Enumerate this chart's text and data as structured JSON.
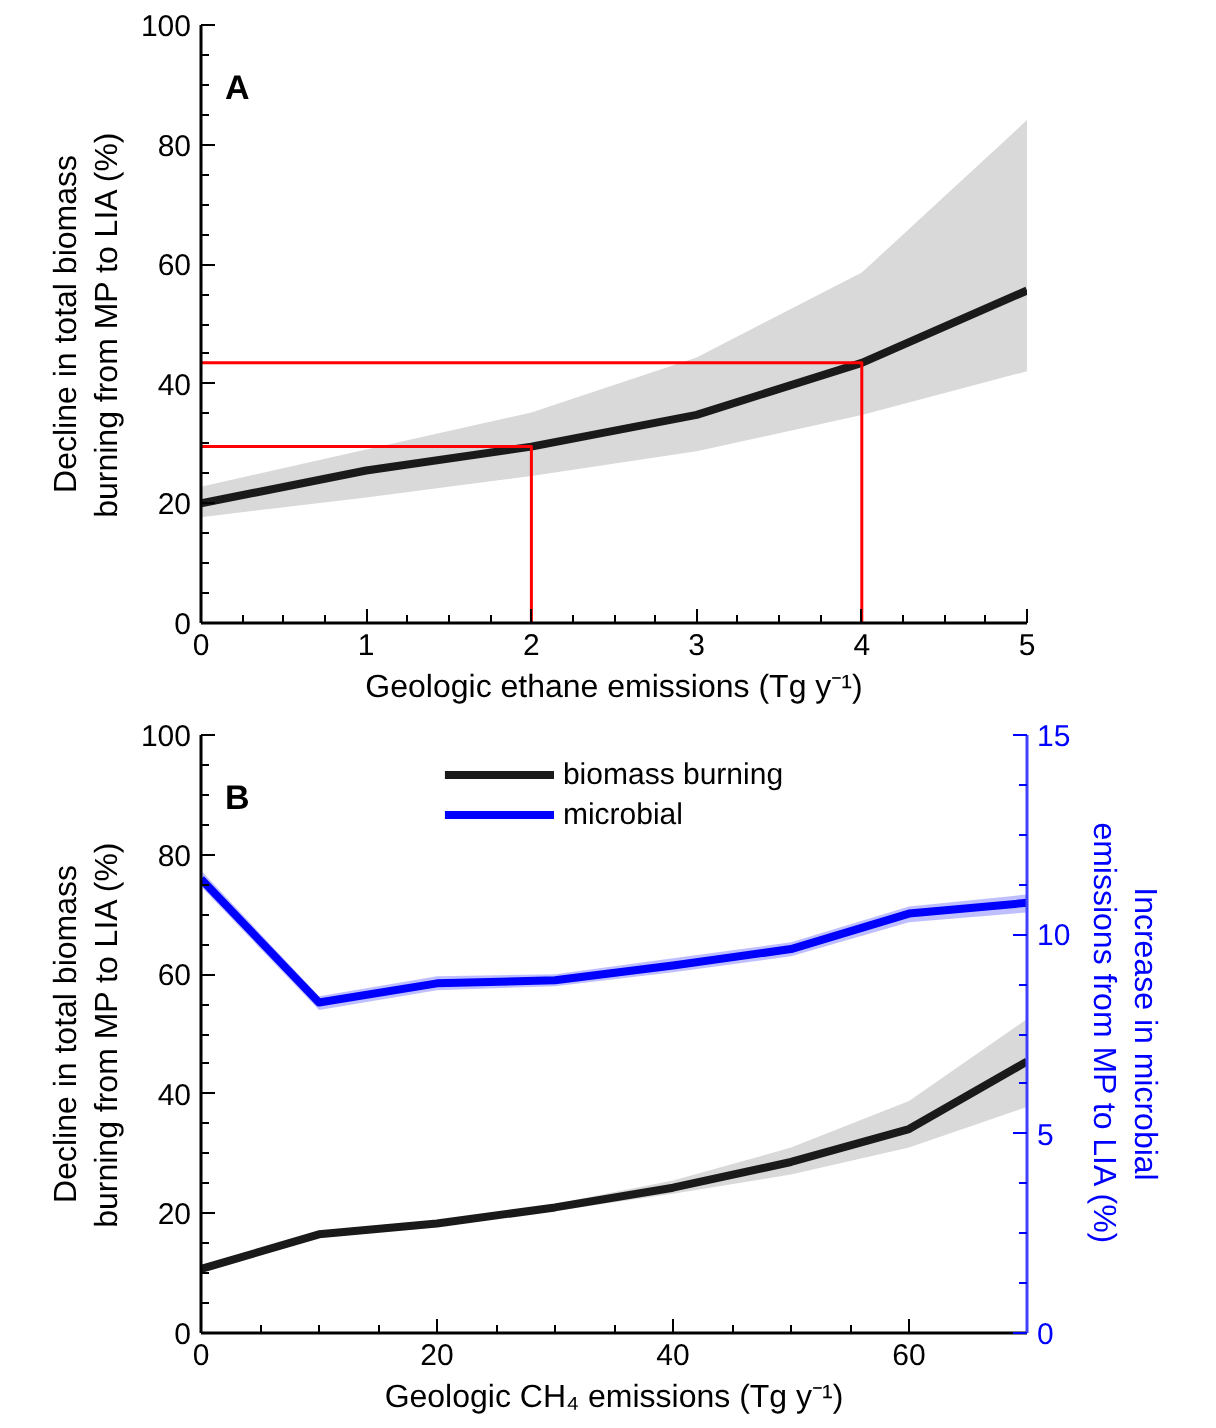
{
  "chart_data": [
    {
      "type": "line",
      "xlabel": "Geologic ethane emissions (Tg y⁻¹)",
      "ylabel": "Decline in total biomass\nburning from MP to LIA (%)",
      "annotations": [
        "A"
      ],
      "x": [
        0,
        1,
        2,
        3,
        4,
        5
      ],
      "xlim": [
        0,
        5
      ],
      "xticks": [
        0,
        1,
        2,
        3,
        4,
        5
      ],
      "ylim": [
        0,
        100
      ],
      "yticks": [
        0,
        20,
        40,
        60,
        80,
        100
      ],
      "grid": false,
      "legend": false,
      "series": [
        {
          "color": "#1a1a1a",
          "values": [
            20,
            25.5,
            29.5,
            34.8,
            43.5,
            55.6
          ],
          "lower": [
            17.7,
            21,
            24.6,
            28.7,
            34.8,
            42.1
          ],
          "upper": [
            22.8,
            29,
            35.2,
            44.4,
            58.6,
            84.1
          ]
        },
        {
          "color": "#ff0000",
          "x": [
            0,
            2,
            2
          ],
          "values": [
            29.5,
            29.5,
            0
          ]
        },
        {
          "color": "#ff0000",
          "x": [
            0,
            4,
            4
          ],
          "values": [
            43.5,
            43.5,
            0
          ]
        }
      ]
    },
    {
      "type": "line",
      "xlabel": "Geologic CH₄ emissions (Tg y⁻¹)",
      "ylabel": "Decline in total biomass\nburning from MP to LIA (%)",
      "y2label": "Increase in microbial\nemissions from MP to LIA (%)",
      "annotations": [
        "B"
      ],
      "x": [
        0,
        10,
        20,
        30,
        40,
        50,
        60,
        70
      ],
      "xlim": [
        0,
        70
      ],
      "xticks": [
        0,
        20,
        40,
        60
      ],
      "ylim": [
        0,
        100
      ],
      "yticks": [
        0,
        20,
        40,
        60,
        80,
        100
      ],
      "y2lim": [
        0,
        15
      ],
      "y2ticks": [
        0,
        5,
        10,
        15
      ],
      "grid": false,
      "legend": "top",
      "series": [
        {
          "name": "biomass burning",
          "color": "#1a1a1a",
          "values": [
            10.7,
            16.5,
            18.3,
            21,
            24.3,
            28.6,
            34.1,
            45.4
          ],
          "lower": [
            10.2,
            16,
            17.8,
            20.4,
            23.3,
            26.5,
            31,
            37.8
          ],
          "upper": [
            11.2,
            17,
            18.8,
            21.6,
            25.5,
            31,
            38.8,
            52.5
          ]
        },
        {
          "name": "microbial",
          "color": "#0000ff",
          "axis": "y2",
          "values": [
            11.39,
            8.29,
            8.77,
            8.85,
            9.22,
            9.63,
            10.52,
            10.79
          ],
          "lower": [
            11.2,
            8.1,
            8.6,
            8.7,
            9.05,
            9.45,
            10.3,
            10.55
          ],
          "upper": [
            11.6,
            8.45,
            8.95,
            9.0,
            9.4,
            9.8,
            10.7,
            11.0
          ]
        }
      ]
    }
  ]
}
